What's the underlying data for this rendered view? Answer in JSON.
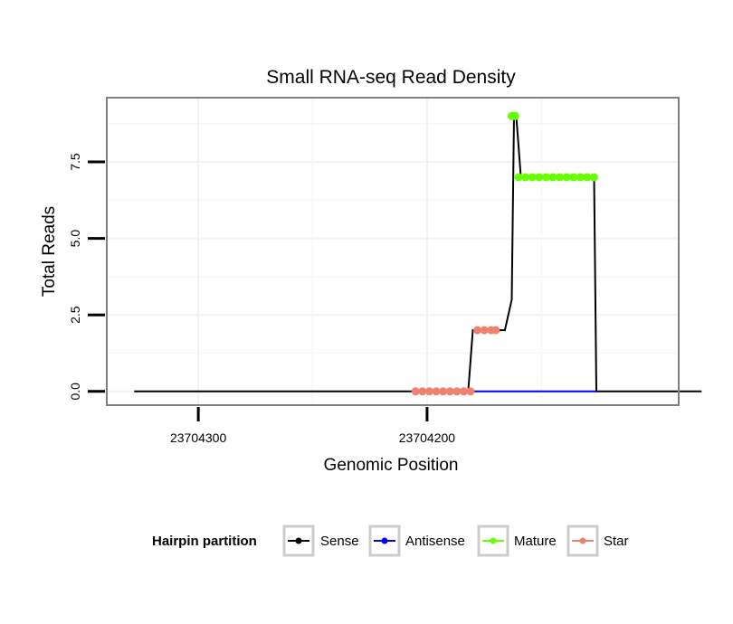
{
  "chart_data": {
    "type": "line",
    "title": "Small RNA-seq Read Density",
    "xlabel": "Genomic Position",
    "ylabel": "Total Reads",
    "x_reversed": true,
    "xlim": [
      23704340,
      23704090
    ],
    "ylim": [
      -0.45,
      9.6
    ],
    "xticks": [
      23704300,
      23704200
    ],
    "xtick_labels": [
      "23704300",
      "23704200"
    ],
    "yticks": [
      0,
      2.5,
      5,
      7.5
    ],
    "ytick_labels": [
      "0.0",
      "2.5",
      "5.0",
      "7.5"
    ],
    "grid": true,
    "legend": {
      "title": "Hairpin partition",
      "position": "bottom",
      "entries": [
        {
          "name": "Sense",
          "color": "#000000"
        },
        {
          "name": "Antisense",
          "color": "#0000ff"
        },
        {
          "name": "Mature",
          "color": "#66ff00"
        },
        {
          "name": "Star",
          "color": "#f08070"
        }
      ]
    },
    "series": [
      {
        "name": "Sense",
        "color": "#000000",
        "kind": "line",
        "x": [
          23704328,
          23704182,
          23704180,
          23704166,
          23704163,
          23704162,
          23704161,
          23704159,
          23704158,
          23704127,
          23704126,
          23704080
        ],
        "y": [
          0,
          0,
          2,
          2,
          3,
          9,
          9,
          7,
          7,
          7,
          0,
          0
        ]
      },
      {
        "name": "Antisense",
        "color": "#0000ff",
        "kind": "line",
        "x": [
          23704187,
          23704126
        ],
        "y": [
          0,
          0
        ]
      },
      {
        "name": "Mature",
        "color": "#66ff00",
        "kind": "points",
        "x": [
          23704163,
          23704162.5,
          23704162,
          23704161.5,
          23704160,
          23704157,
          23704154,
          23704151,
          23704148,
          23704145,
          23704142,
          23704139,
          23704136,
          23704133,
          23704130,
          23704127
        ],
        "y": [
          9,
          9,
          9,
          9,
          7,
          7,
          7,
          7,
          7,
          7,
          7,
          7,
          7,
          7,
          7,
          7
        ]
      },
      {
        "name": "Star",
        "color": "#f08070",
        "kind": "points",
        "x": [
          23704205,
          23704202,
          23704199,
          23704196,
          23704193,
          23704190,
          23704187,
          23704184,
          23704181,
          23704178,
          23704175,
          23704172,
          23704170
        ],
        "y": [
          0,
          0,
          0,
          0,
          0,
          0,
          0,
          0,
          0,
          2,
          2,
          2,
          2
        ]
      }
    ]
  }
}
